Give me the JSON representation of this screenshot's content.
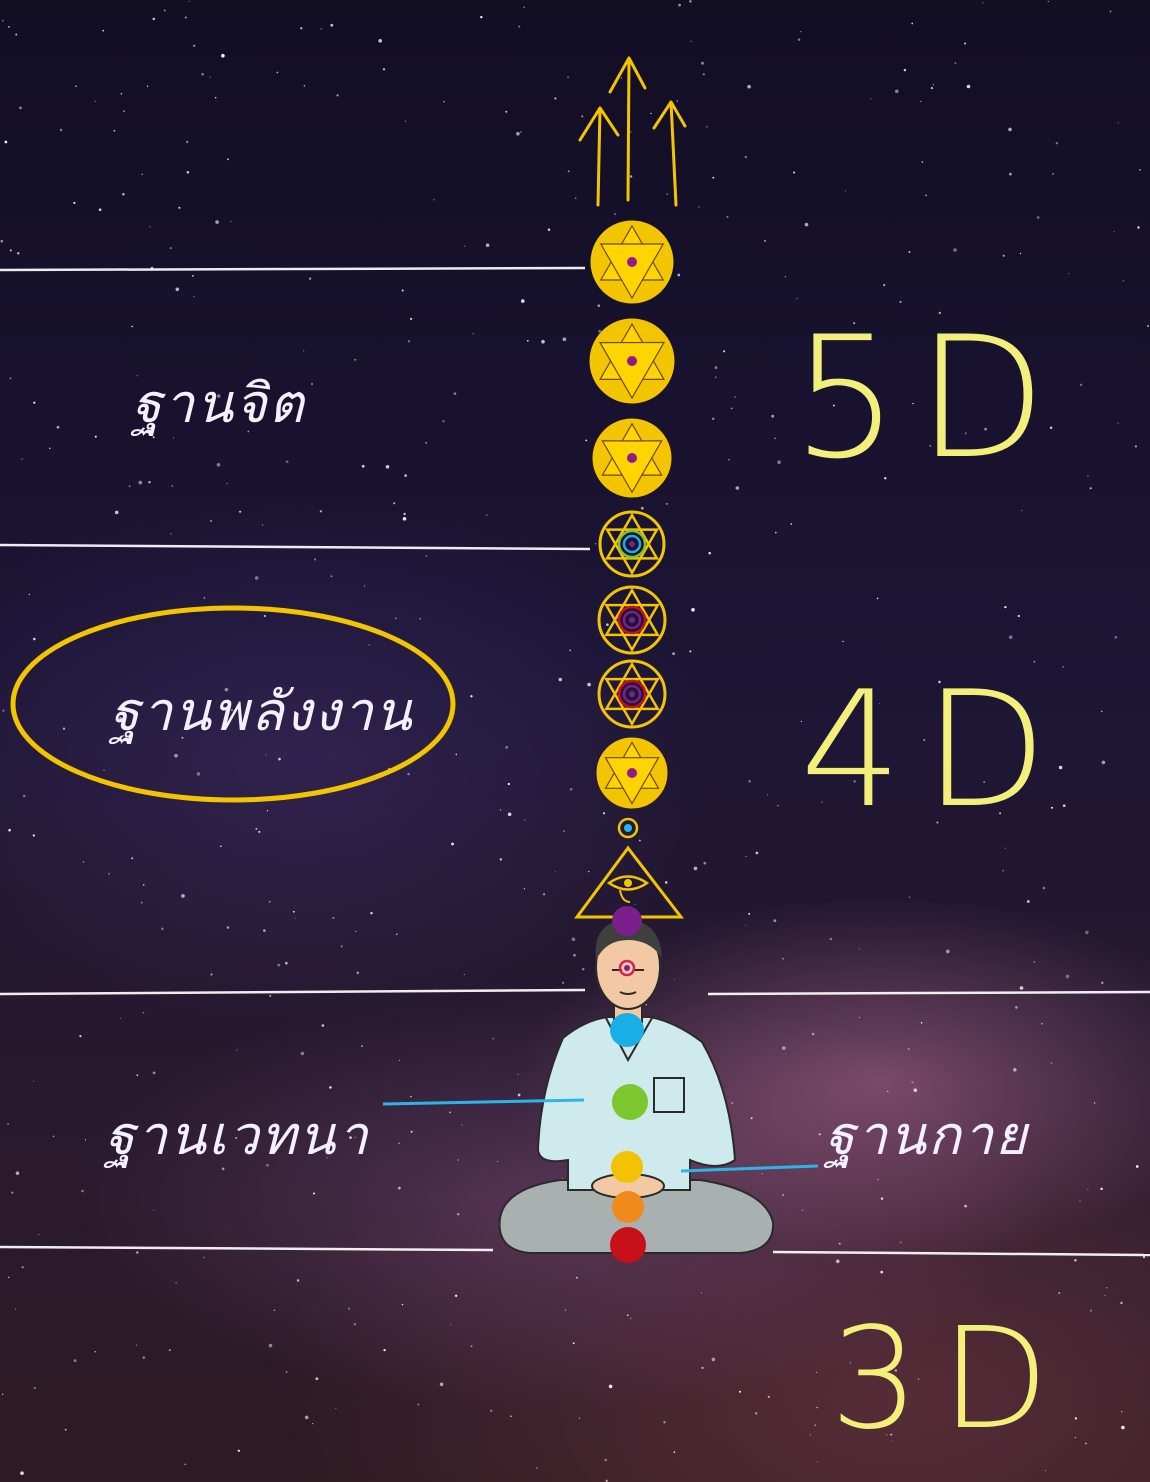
{
  "labels": {
    "mind_base": "ฐานจิต",
    "energy_base": "ฐานพลังงาน",
    "feeling_base": "ฐานเวทนา",
    "body_base": "ฐานกาย"
  },
  "dimensions": {
    "d5": "5D",
    "d4": "4D",
    "d3": "3D"
  },
  "colors": {
    "gold": "#f2c500",
    "line": "#ffffff",
    "cyan_pointer": "#29b6e6",
    "chakra_crown": "#7a1f8c",
    "chakra_third_eye": "#d61f5e",
    "chakra_throat": "#1aaee6",
    "chakra_heart": "#7cc62e",
    "chakra_solar": "#f2c100",
    "chakra_sacral": "#f08a1a",
    "chakra_root": "#c8101a"
  },
  "icons": [
    "up-arrows-icon",
    "star-of-david-icon",
    "spiral-star-icon",
    "eye-of-providence-icon",
    "meditating-person-icon"
  ]
}
